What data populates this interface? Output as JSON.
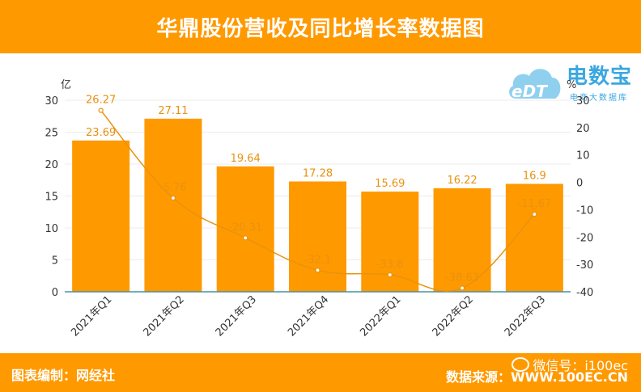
{
  "header": {
    "title": "华鼎股份营收及同比增长率数据图"
  },
  "footer": {
    "left": "图表编制：网经社",
    "right": "数据来源：WWW.100EC.CN",
    "wechat": "微信号：i100ec"
  },
  "logo": {
    "name": "电数宝",
    "sub": "电商大数据库",
    "cloud_text": "eDT"
  },
  "colors": {
    "bar": "#ff9900",
    "line": "#e8920f",
    "axis_left": "#4a90a4",
    "label": "#e8920f"
  },
  "chart_data": {
    "type": "bar",
    "categories": [
      "2021年Q1",
      "2021年Q2",
      "2021年Q3",
      "2021年Q4",
      "2022年Q1",
      "2022年Q2",
      "2022年Q3"
    ],
    "series": [
      {
        "name": "",
        "kind": "bar",
        "axis": "left",
        "values": [
          23.69,
          27.11,
          19.64,
          17.28,
          15.69,
          16.22,
          16.9
        ]
      },
      {
        "name": "",
        "kind": "line",
        "axis": "right",
        "values": [
          26.27,
          -5.76,
          -20.31,
          -32.1,
          -33.8,
          -38.63,
          -11.67
        ]
      }
    ],
    "y_left": {
      "unit": "亿",
      "ylim": [
        0,
        30
      ],
      "ticks": [
        0,
        5,
        10,
        15,
        20,
        25,
        30
      ]
    },
    "y_right": {
      "unit": "%",
      "ylim": [
        -40,
        30
      ],
      "ticks": [
        -40,
        -30,
        -20,
        -10,
        0,
        10,
        20,
        30
      ]
    },
    "grid": true,
    "legend": "none"
  }
}
